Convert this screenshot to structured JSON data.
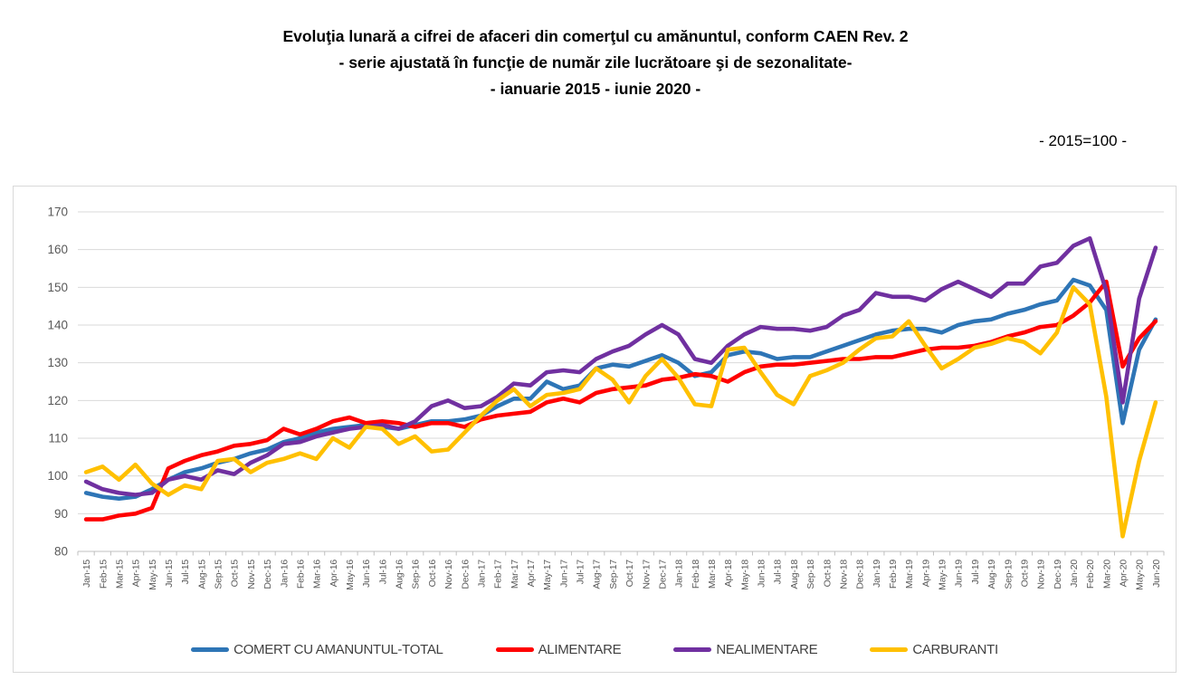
{
  "title": {
    "line1": "Evoluţia lunară a cifrei de afaceri din comerţul cu amănuntul,  conform CAEN Rev. 2",
    "line2": "- serie ajustată în funcţie de număr zile lucrătoare şi de sezonalitate-",
    "line3": "- ianuarie 2015 -  iunie 2020  -"
  },
  "scale_note": "- 2015=100 -",
  "colors": {
    "gridline": "#D9D9D9",
    "axis_line": "#BFBFBF",
    "axis_text": "#595959",
    "legend_text": "#404040",
    "chart_border": "#D9D9D9"
  },
  "chart_data": {
    "type": "line",
    "title": "Evoluţia lunară a cifrei de afaceri din comerţul cu amănuntul, conform CAEN Rev. 2",
    "subtitle": "serie ajustată în funcţie de număr zile lucrătoare şi de sezonalitate, ianuarie 2015 - iunie 2020",
    "index_base": "2015=100",
    "ylim": [
      80,
      170
    ],
    "ytick_step": 10,
    "grid": "horizontal",
    "legend_position": "bottom",
    "categories": [
      "Jan-15",
      "Feb-15",
      "Mar-15",
      "Apr-15",
      "May-15",
      "Jun-15",
      "Jul-15",
      "Aug-15",
      "Sep-15",
      "Oct-15",
      "Nov-15",
      "Dec-15",
      "Jan-16",
      "Feb-16",
      "Mar-16",
      "Apr-16",
      "May-16",
      "Jun-16",
      "Jul-16",
      "Aug-16",
      "Sep-16",
      "Oct-16",
      "Nov-16",
      "Dec-16",
      "Jan-17",
      "Feb-17",
      "Mar-17",
      "Apr-17",
      "May-17",
      "Jun-17",
      "Jul-17",
      "Aug-17",
      "Sep-17",
      "Oct-17",
      "Nov-17",
      "Dec-17",
      "Jan-18",
      "Feb-18",
      "Mar-18",
      "Apr-18",
      "May-18",
      "Jun-18",
      "Jul-18",
      "Aug-18",
      "Sep-18",
      "Oct-18",
      "Nov-18",
      "Dec-18",
      "Jan-19",
      "Feb-19",
      "Mar-19",
      "Apr-19",
      "May-19",
      "Jun-19",
      "Jul-19",
      "Aug-19",
      "Sep-19",
      "Oct-19",
      "Nov-19",
      "Dec-19",
      "Jan-20",
      "Feb-20",
      "Mar-20",
      "Apr-20",
      "May-20",
      "Jun-20"
    ],
    "series": [
      {
        "name": "COMERT CU AMANUNTUL-TOTAL",
        "color": "#2E75B6",
        "values": [
          95.5,
          94.5,
          94,
          94.5,
          96.5,
          99,
          101,
          102,
          103.5,
          104.5,
          106,
          107,
          109,
          110,
          111.5,
          112.5,
          113,
          113.5,
          113,
          112.5,
          113.5,
          114.5,
          114.5,
          115,
          116,
          118.5,
          120.5,
          120.5,
          125,
          123,
          124,
          128.5,
          129.5,
          129,
          130.5,
          132,
          130,
          126.5,
          127.5,
          132,
          133,
          132.5,
          131,
          131.5,
          131.5,
          133,
          134.5,
          136,
          137.5,
          138.5,
          139,
          139,
          138,
          140,
          141,
          141.5,
          143,
          144,
          145.5,
          146.5,
          152,
          150.5,
          144,
          114,
          133.5,
          141.5
        ]
      },
      {
        "name": "ALIMENTARE",
        "color": "#FF0000",
        "values": [
          88.5,
          88.5,
          89.5,
          90,
          91.5,
          102,
          104,
          105.5,
          106.5,
          108,
          108.5,
          109.5,
          112.5,
          111,
          112.5,
          114.5,
          115.5,
          114,
          114.5,
          114,
          113,
          114,
          114,
          113,
          115,
          116,
          116.5,
          117,
          119.5,
          120.5,
          119.5,
          122,
          123,
          123.5,
          124,
          125.5,
          126,
          127,
          126.5,
          125,
          127.5,
          129,
          129.5,
          129.5,
          130,
          130.5,
          131,
          131,
          131.5,
          131.5,
          132.5,
          133.5,
          134,
          134,
          134.5,
          135.5,
          137,
          138,
          139.5,
          140,
          142.5,
          146,
          151.5,
          129,
          136.5,
          141
        ]
      },
      {
        "name": "NEALIMENTARE",
        "color": "#7030A0",
        "values": [
          98.5,
          96.5,
          95.5,
          95,
          95.5,
          99,
          100,
          99,
          101.5,
          100.5,
          103.5,
          105.5,
          108.5,
          109,
          110.5,
          111.5,
          112.5,
          113,
          113.5,
          112.5,
          114.5,
          118.5,
          120,
          118,
          118.5,
          121,
          124.5,
          124,
          127.5,
          128,
          127.5,
          131,
          133,
          134.5,
          137.5,
          140,
          137.5,
          131,
          130,
          134.5,
          137.5,
          139.5,
          139,
          139,
          138.5,
          139.5,
          142.5,
          144,
          148.5,
          147.5,
          147.5,
          146.5,
          149.5,
          151.5,
          149.5,
          147.5,
          151,
          151,
          155.5,
          156.5,
          161,
          163,
          149,
          119.5,
          147,
          160.5
        ]
      },
      {
        "name": "CARBURANTI",
        "color": "#FFC000",
        "values": [
          101,
          102.5,
          99,
          103,
          98,
          95,
          97.5,
          96.5,
          104,
          104.5,
          101,
          103.5,
          104.5,
          106,
          104.5,
          110,
          107.5,
          113,
          112.5,
          108.5,
          110.5,
          106.5,
          107,
          111.5,
          116,
          120,
          123,
          118.5,
          121.5,
          122,
          123,
          128.5,
          125.5,
          119.5,
          126.5,
          131,
          126,
          119,
          118.5,
          133.5,
          134,
          127.5,
          121.5,
          119,
          126.5,
          128,
          130,
          133.5,
          136.5,
          137,
          141,
          134.5,
          128.5,
          131,
          134,
          135,
          136.5,
          135.5,
          132.5,
          138,
          150,
          145.5,
          121,
          84,
          104,
          119.5
        ]
      }
    ]
  }
}
